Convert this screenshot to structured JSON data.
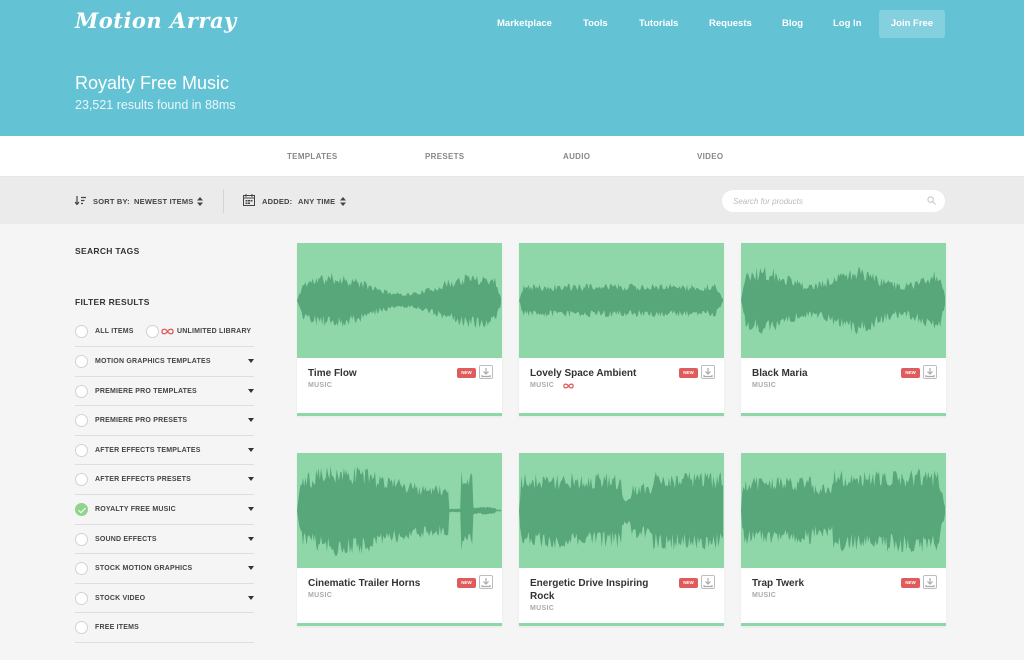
{
  "header": {
    "logo": "Motion Array",
    "nav": [
      "Marketplace",
      "Tools",
      "Tutorials",
      "Requests",
      "Blog",
      "Log In"
    ],
    "join_label": "Join Free",
    "title": "Royalty Free Music",
    "subtitle": "23,521 results found in 88ms"
  },
  "tabs": [
    "TEMPLATES",
    "PRESETS",
    "AUDIO",
    "VIDEO"
  ],
  "sortbar": {
    "sort_label": "SORT BY:",
    "sort_value": "NEWEST ITEMS",
    "added_label": "ADDED:",
    "added_value": "ANY TIME",
    "search_placeholder": "Search for products"
  },
  "sidebar": {
    "search_tags": "SEARCH TAGS",
    "filter_results": "FILTER RESULTS",
    "all_items": "ALL ITEMS",
    "unlimited": "UNLIMITED LIBRARY",
    "filters": [
      "MOTION GRAPHICS TEMPLATES",
      "PREMIERE PRO TEMPLATES",
      "PREMIERE PRO PRESETS",
      "AFTER EFFECTS TEMPLATES",
      "AFTER EFFECTS PRESETS",
      "ROYALTY FREE MUSIC",
      "SOUND EFFECTS",
      "STOCK MOTION GRAPHICS",
      "STOCK VIDEO",
      "FREE ITEMS"
    ],
    "selected": "ROYALTY FREE MUSIC"
  },
  "cards": [
    {
      "title": "Time Flow",
      "type": "MUSIC",
      "badge": "NEW",
      "unlimited": false
    },
    {
      "title": "Lovely Space Ambient",
      "type": "MUSIC",
      "badge": "NEW",
      "unlimited": true
    },
    {
      "title": "Black Maria",
      "type": "MUSIC",
      "badge": "NEW",
      "unlimited": false
    },
    {
      "title": "Cinematic Trailer Horns",
      "type": "MUSIC",
      "badge": "NEW",
      "unlimited": false
    },
    {
      "title": "Energetic Drive Inspiring Rock",
      "type": "MUSIC",
      "badge": "NEW",
      "unlimited": false
    },
    {
      "title": "Trap Twerk",
      "type": "MUSIC",
      "badge": "NEW",
      "unlimited": false
    }
  ],
  "colors": {
    "header_bg": "#63c3d5",
    "wave_bg": "#8fd7a9",
    "wave_fill": "#58a77a",
    "badge": "#e05b5b",
    "check": "#8fd48a"
  }
}
